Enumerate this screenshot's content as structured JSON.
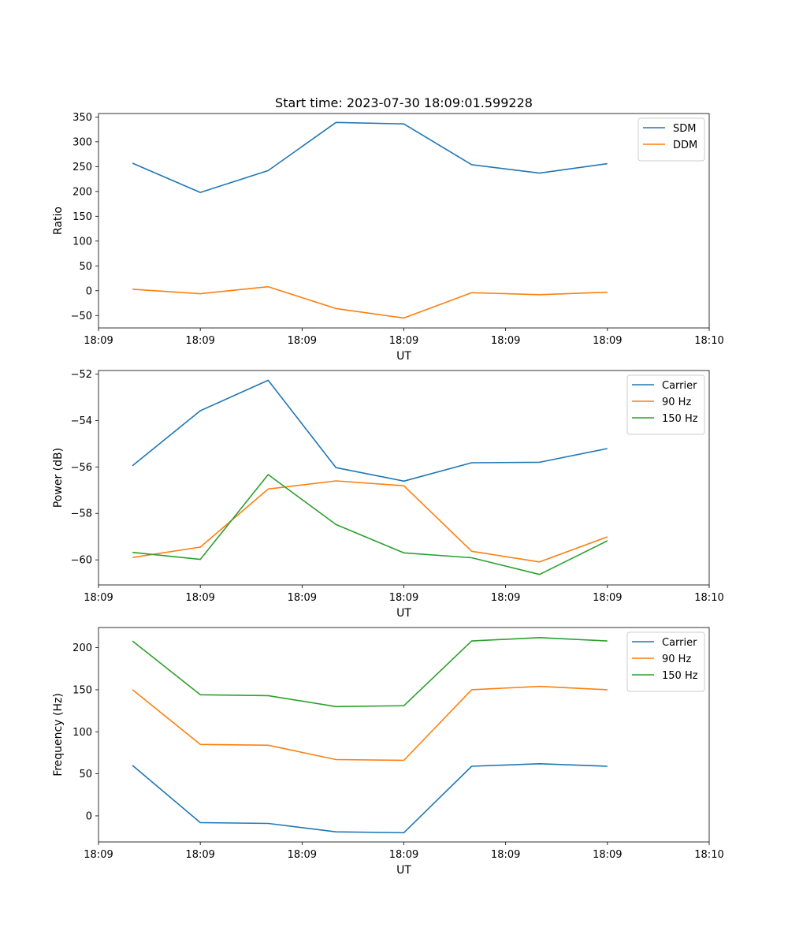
{
  "colors": {
    "blue": "#1f77b4",
    "orange": "#ff7f0e",
    "green": "#2ca02c"
  },
  "chart_data": [
    {
      "type": "line",
      "title": "Start time: 2023-07-30 18:09:01.599228",
      "xlabel": "UT",
      "ylabel": "Ratio",
      "x": [
        1,
        2,
        3,
        4,
        5,
        6,
        7,
        8
      ],
      "xlim": [
        0.5,
        9.5
      ],
      "xticks": [
        0.5,
        2,
        3.5,
        5,
        6.5,
        8,
        9.5
      ],
      "xticklabels": [
        "18:09",
        "18:09",
        "18:09",
        "18:09",
        "18:09",
        "18:09",
        "18:10"
      ],
      "ylim": [
        -75,
        357
      ],
      "yticks": [
        -50,
        0,
        50,
        100,
        150,
        200,
        250,
        300,
        350
      ],
      "yticklabels": [
        "−50",
        "0",
        "50",
        "100",
        "150",
        "200",
        "250",
        "300",
        "350"
      ],
      "legend_position": "top-right",
      "series": [
        {
          "name": "SDM",
          "color": "blue",
          "values": [
            257,
            198,
            242,
            339,
            336,
            254,
            237,
            256
          ]
        },
        {
          "name": "DDM",
          "color": "orange",
          "values": [
            3,
            -6,
            8,
            -36,
            -55,
            -4,
            -8,
            -3
          ]
        }
      ]
    },
    {
      "type": "line",
      "title": "",
      "xlabel": "UT",
      "ylabel": "Power (dB)",
      "x": [
        1,
        2,
        3,
        4,
        5,
        6,
        7,
        8
      ],
      "xlim": [
        0.5,
        9.5
      ],
      "xticks": [
        0.5,
        2,
        3.5,
        5,
        6.5,
        8,
        9.5
      ],
      "xticklabels": [
        "18:09",
        "18:09",
        "18:09",
        "18:09",
        "18:09",
        "18:09",
        "18:10"
      ],
      "ylim": [
        -61.08,
        -51.85
      ],
      "yticks": [
        -60,
        -58,
        -56,
        -54,
        -52
      ],
      "yticklabels": [
        "−60",
        "−58",
        "−56",
        "−54",
        "−52"
      ],
      "legend_position": "top-right",
      "series": [
        {
          "name": "Carrier",
          "color": "blue",
          "values": [
            -55.95,
            -53.58,
            -52.27,
            -56.03,
            -56.61,
            -55.82,
            -55.8,
            -55.21
          ]
        },
        {
          "name": "90 Hz",
          "color": "orange",
          "values": [
            -59.9,
            -59.45,
            -56.95,
            -56.6,
            -56.81,
            -59.63,
            -60.09,
            -59.01
          ]
        },
        {
          "name": "150 Hz",
          "color": "green",
          "values": [
            -59.68,
            -59.98,
            -56.33,
            -58.48,
            -59.7,
            -59.91,
            -60.63,
            -59.18
          ]
        }
      ]
    },
    {
      "type": "line",
      "title": "",
      "xlabel": "UT",
      "ylabel": "Frequency (Hz)",
      "x": [
        1,
        2,
        3,
        4,
        5,
        6,
        7,
        8
      ],
      "xlim": [
        0.5,
        9.5
      ],
      "xticks": [
        0.5,
        2,
        3.5,
        5,
        6.5,
        8,
        9.5
      ],
      "xticklabels": [
        "18:09",
        "18:09",
        "18:09",
        "18:09",
        "18:09",
        "18:09",
        "18:10"
      ],
      "ylim": [
        -31,
        224
      ],
      "yticks": [
        0,
        50,
        100,
        150,
        200
      ],
      "yticklabels": [
        "0",
        "50",
        "100",
        "150",
        "200"
      ],
      "legend_position": "top-right",
      "series": [
        {
          "name": "Carrier",
          "color": "blue",
          "values": [
            60,
            -8,
            -9,
            -19,
            -20,
            59,
            62,
            59
          ]
        },
        {
          "name": "90 Hz",
          "color": "orange",
          "values": [
            150,
            85,
            84,
            67,
            66,
            150,
            154,
            150
          ]
        },
        {
          "name": "150 Hz",
          "color": "green",
          "values": [
            208,
            144,
            143,
            130,
            131,
            208,
            212,
            208
          ]
        }
      ]
    }
  ]
}
